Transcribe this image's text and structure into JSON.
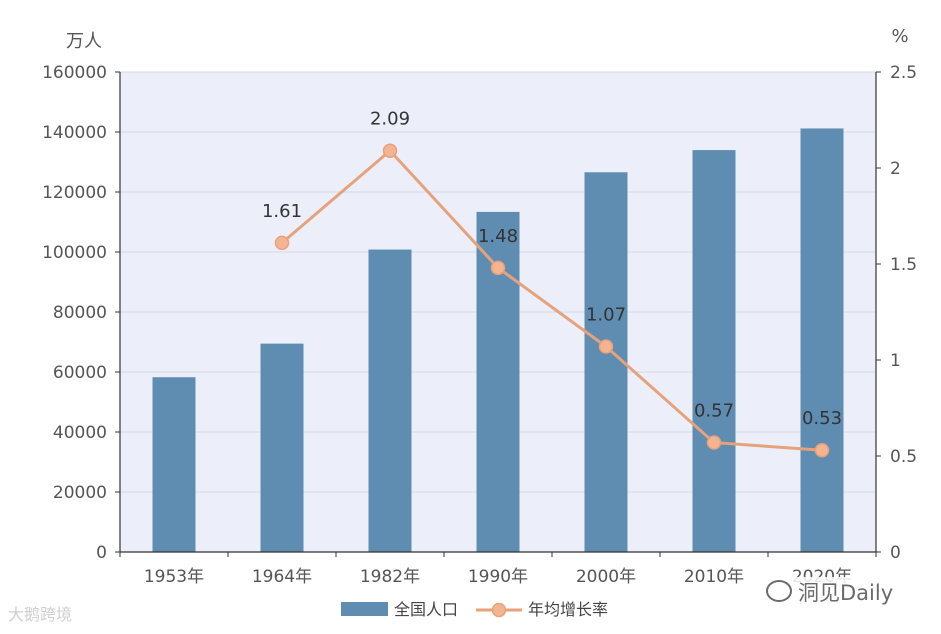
{
  "chart_data": {
    "type": "bar+line",
    "categories": [
      "1953年",
      "1964年",
      "1982年",
      "1990年",
      "2000年",
      "2010年",
      "2020年"
    ],
    "series": [
      {
        "name": "全国人口",
        "axis": "left",
        "type": "bar",
        "values": [
          58260,
          69458,
          100818,
          113368,
          126583,
          133972,
          141178
        ]
      },
      {
        "name": "年均增长率",
        "axis": "right",
        "type": "line",
        "values": [
          null,
          1.61,
          2.09,
          1.48,
          1.07,
          0.57,
          0.53
        ],
        "labels": [
          "",
          "1.61",
          "2.09",
          "1.48",
          "1.07",
          "0.57",
          "0.53"
        ]
      }
    ],
    "left_axis": {
      "unit": "万人",
      "min": 0,
      "max": 160000,
      "ticks": [
        "0",
        "20000",
        "40000",
        "60000",
        "80000",
        "100000",
        "120000",
        "140000",
        "160000"
      ]
    },
    "right_axis": {
      "unit": "%",
      "min": 0,
      "max": 2.5,
      "ticks": [
        "0",
        "0.5",
        "1",
        "1.5",
        "2",
        "2.5"
      ]
    },
    "legend": {
      "position": "bottom-center"
    },
    "colors": {
      "bar": "#5f8db2",
      "line": "#e6a27b",
      "marker_fill": "#f4b391",
      "plot_bg": "#eceff9",
      "grid": "#d4d8e6",
      "axis": "#333333"
    }
  },
  "watermarks": {
    "left": "大鹅跨境",
    "right": "洞见Daily"
  }
}
